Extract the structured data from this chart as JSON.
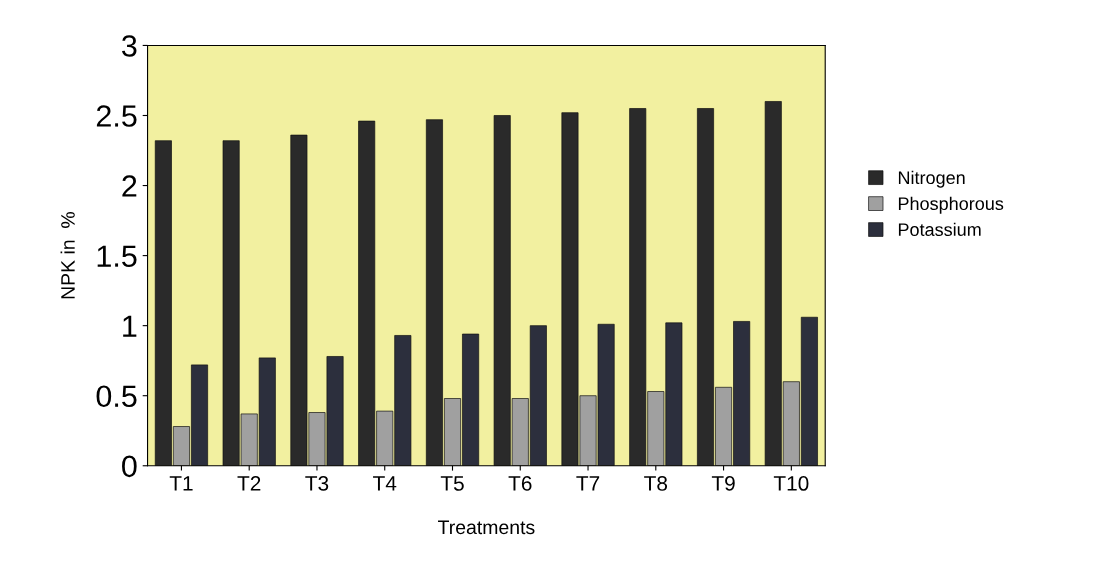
{
  "chart_data": {
    "type": "bar",
    "xlabel": "Treatments",
    "ylabel": "NPK in  %",
    "categories": [
      "T1",
      "T2",
      "T3",
      "T4",
      "T5",
      "T6",
      "T7",
      "T8",
      "T9",
      "T10"
    ],
    "series": [
      {
        "name": "Nitrogen",
        "color": "#2a2a2a",
        "values": [
          2.32,
          2.32,
          2.36,
          2.46,
          2.47,
          2.5,
          2.52,
          2.55,
          2.55,
          2.6
        ]
      },
      {
        "name": "Phosphorous",
        "color": "#a0a0a0",
        "values": [
          0.28,
          0.37,
          0.38,
          0.39,
          0.48,
          0.48,
          0.5,
          0.53,
          0.56,
          0.6
        ]
      },
      {
        "name": "Potassium",
        "color": "#2c2f3d",
        "values": [
          0.72,
          0.77,
          0.78,
          0.93,
          0.94,
          1.0,
          1.01,
          1.02,
          1.03,
          1.06
        ]
      }
    ],
    "ylim": [
      0,
      3
    ],
    "yticks": [
      0,
      0.5,
      1,
      1.5,
      2,
      2.5,
      3
    ],
    "grid": false,
    "legend": "right"
  }
}
